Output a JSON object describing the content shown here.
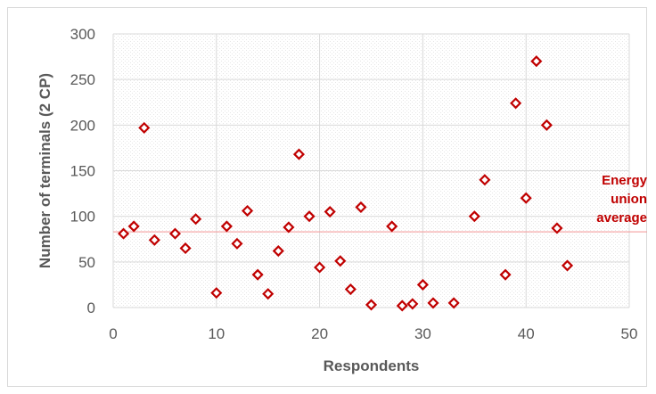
{
  "chart_data": {
    "type": "scatter",
    "title": "",
    "xlabel": "Respondents",
    "ylabel": "Number of terminals (2 CP)",
    "xlim": [
      0,
      50
    ],
    "ylim": [
      0,
      300
    ],
    "x_ticks": [
      "0",
      "10",
      "20",
      "30",
      "40",
      "50"
    ],
    "y_ticks": [
      "0",
      "50",
      "100",
      "150",
      "200",
      "250",
      "300"
    ],
    "grid": true,
    "marker_color": "#c00000",
    "reference_line": {
      "value": 83,
      "color": "#f4a0a0",
      "label_lines": [
        "Energy",
        "union",
        "average"
      ],
      "label_color": "#c00000"
    },
    "points": [
      [
        1,
        81
      ],
      [
        2,
        89
      ],
      [
        3,
        197
      ],
      [
        4,
        74
      ],
      [
        6,
        81
      ],
      [
        7,
        65
      ],
      [
        8,
        97
      ],
      [
        10,
        16
      ],
      [
        11,
        89
      ],
      [
        12,
        70
      ],
      [
        13,
        106
      ],
      [
        14,
        36
      ],
      [
        15,
        15
      ],
      [
        16,
        62
      ],
      [
        17,
        88
      ],
      [
        18,
        168
      ],
      [
        19,
        100
      ],
      [
        20,
        44
      ],
      [
        21,
        105
      ],
      [
        22,
        51
      ],
      [
        23,
        20
      ],
      [
        24,
        110
      ],
      [
        25,
        3
      ],
      [
        27,
        89
      ],
      [
        28,
        2
      ],
      [
        29,
        4
      ],
      [
        30,
        25
      ],
      [
        31,
        5
      ],
      [
        33,
        5
      ],
      [
        35,
        100
      ],
      [
        36,
        140
      ],
      [
        38,
        36
      ],
      [
        39,
        224
      ],
      [
        40,
        120
      ],
      [
        41,
        270
      ],
      [
        42,
        200
      ],
      [
        43,
        87
      ],
      [
        44,
        46
      ]
    ]
  }
}
